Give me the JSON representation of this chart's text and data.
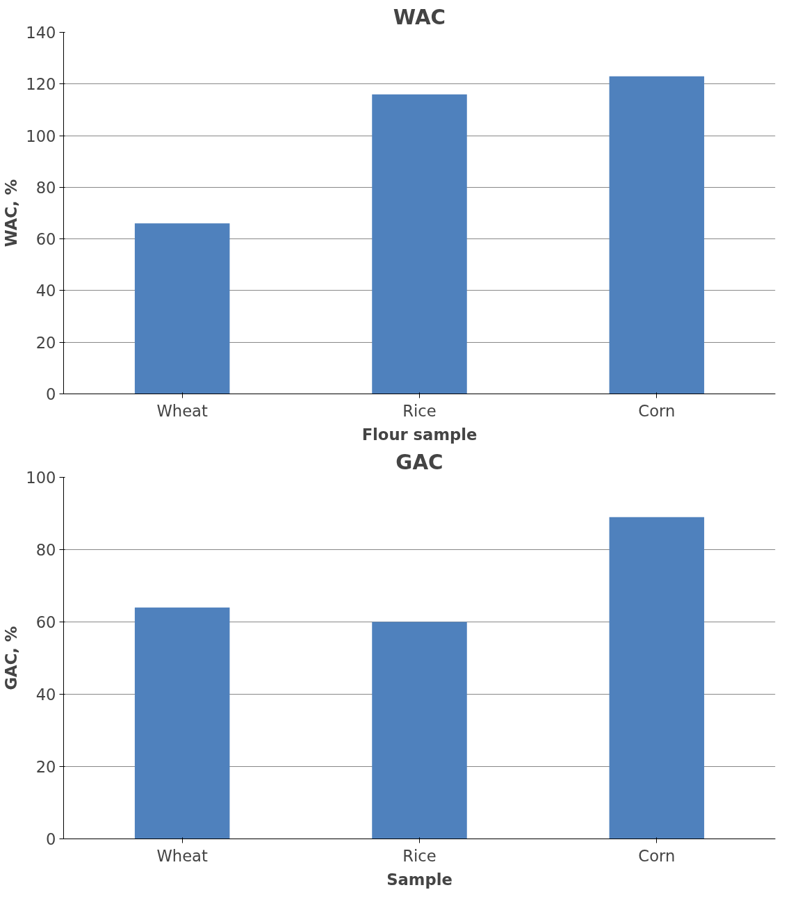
{
  "chart_data": [
    {
      "type": "bar",
      "title": "WAC",
      "xlabel": "Flour sample",
      "ylabel": "WAC, %",
      "categories": [
        "Wheat",
        "Rice",
        "Corn"
      ],
      "values": [
        66,
        116,
        123
      ],
      "color": "#4f81bd",
      "ylim": [
        0,
        140
      ],
      "yticks": [
        0,
        20,
        40,
        60,
        80,
        100,
        120,
        140
      ],
      "grid": "y"
    },
    {
      "type": "bar",
      "title": "GAC",
      "xlabel": "Sample",
      "ylabel": "GAC, %",
      "categories": [
        "Wheat",
        "Rice",
        "Corn"
      ],
      "values": [
        64,
        60,
        89
      ],
      "color": "#4f81bd",
      "ylim": [
        0,
        100
      ],
      "yticks": [
        0,
        20,
        40,
        60,
        80,
        100
      ],
      "grid": "y"
    }
  ]
}
